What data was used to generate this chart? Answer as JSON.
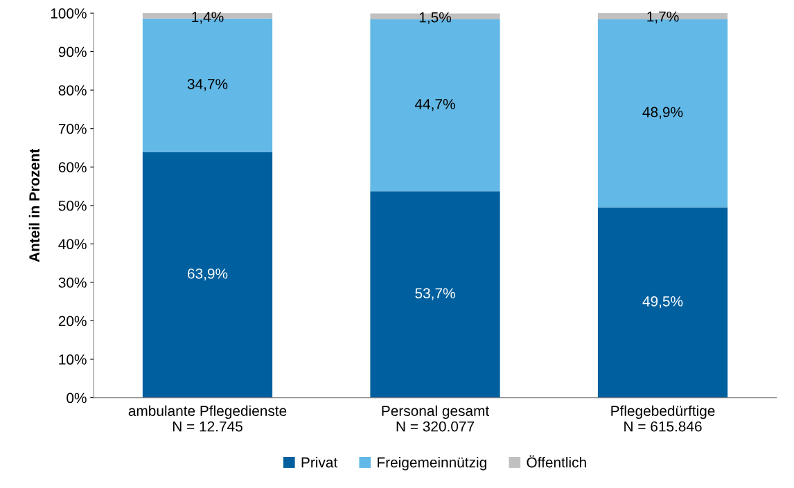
{
  "chart_data": {
    "type": "bar",
    "stacked": true,
    "ylabel": "Anteil in Prozent",
    "categories": [
      "ambulante Pflegedienste\nN = 12.745",
      "Personal gesamt\nN = 320.077",
      "Pflegebedürftige\nN = 615.846"
    ],
    "series": [
      {
        "name": "Privat",
        "color": "#005f9e",
        "values": [
          63.9,
          53.7,
          49.5
        ],
        "value_labels": [
          "63,9%",
          "53,7%",
          "49,5%"
        ]
      },
      {
        "name": "Freigemeinnützig",
        "color": "#62b8e6",
        "values": [
          34.7,
          44.7,
          48.9
        ],
        "value_labels": [
          "34,7%",
          "44,7%",
          "48,9%"
        ]
      },
      {
        "name": "Öffentlich",
        "color": "#c0c0c0",
        "values": [
          1.4,
          1.5,
          1.7
        ],
        "value_labels": [
          "1,4%",
          "1,5%",
          "1,7%"
        ]
      }
    ],
    "ylim": [
      0,
      100
    ],
    "yticks": [
      {
        "value": 0,
        "label": "0%"
      },
      {
        "value": 10,
        "label": "10%"
      },
      {
        "value": 20,
        "label": "20%"
      },
      {
        "value": 30,
        "label": "30%"
      },
      {
        "value": 40,
        "label": "40%"
      },
      {
        "value": 50,
        "label": "50%"
      },
      {
        "value": 60,
        "label": "60%"
      },
      {
        "value": 70,
        "label": "70%"
      },
      {
        "value": 80,
        "label": "80%"
      },
      {
        "value": 90,
        "label": "90%"
      },
      {
        "value": 100,
        "label": "100%"
      }
    ],
    "grid": false,
    "legend": "bottom"
  }
}
